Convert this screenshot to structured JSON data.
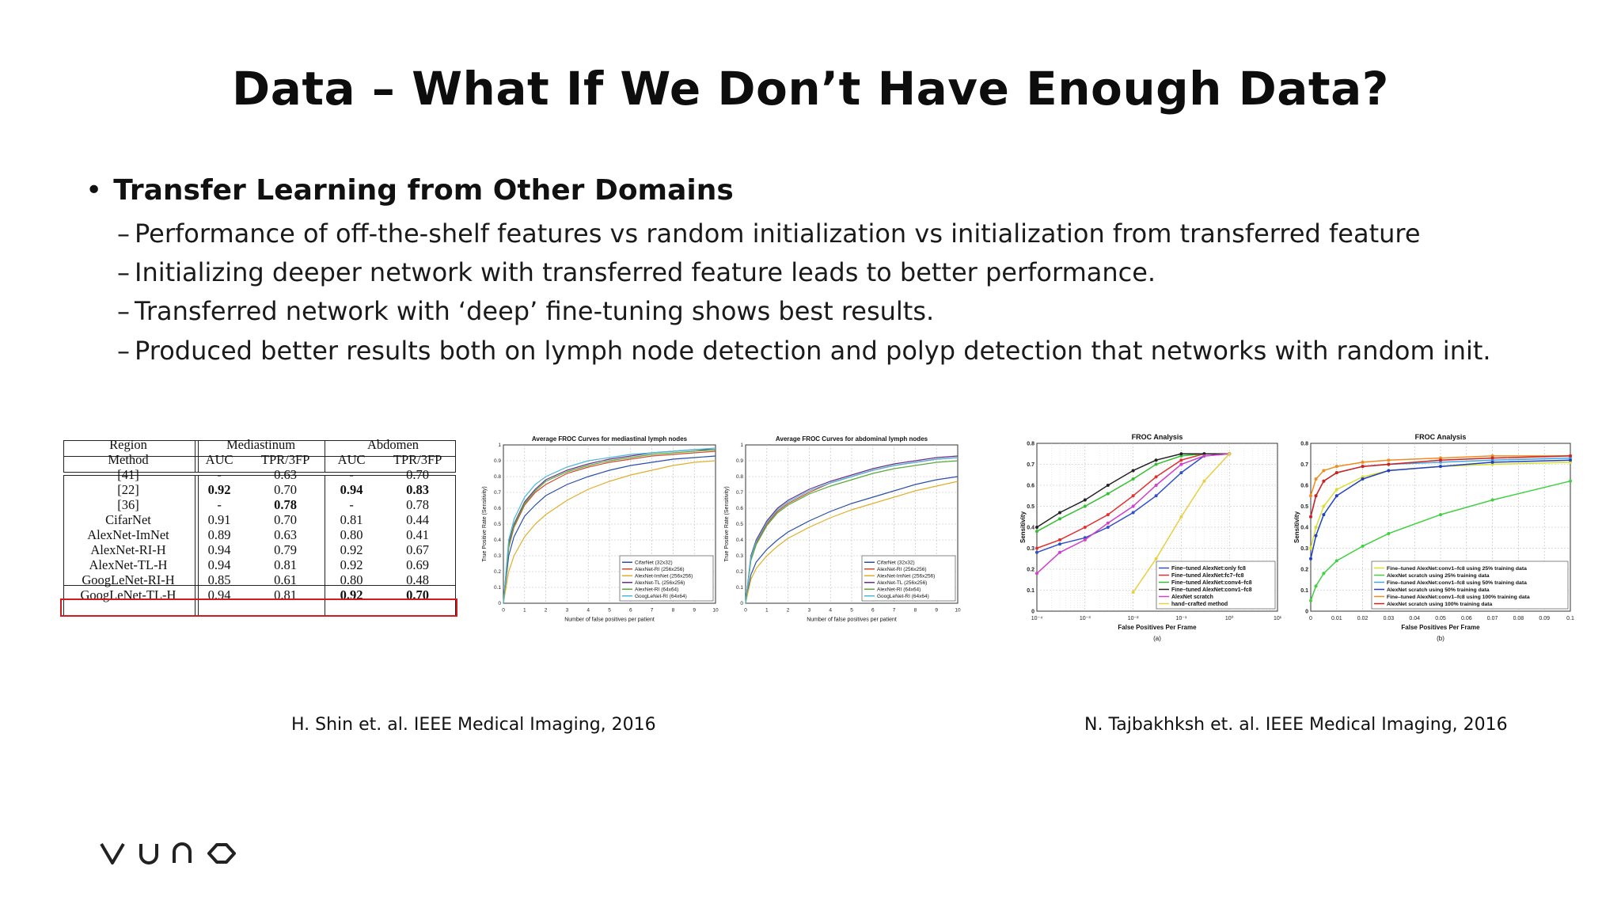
{
  "slide": {
    "title": "Data – What If We Don’t Have Enough Data?",
    "bullet": "Transfer Learning from Other Domains",
    "sub_bullets": [
      "Performance of off-the-shelf features vs random initialization vs initialization from transferred feature",
      "Initializing deeper network with transferred feature leads to better performance.",
      "Transferred network with ‘deep’ fine-tuning shows best results.",
      "Produced better results both on lymph node detection and polyp detection that networks with random init."
    ],
    "caption_left": "H. Shin et. al. IEEE Medical Imaging, 2016",
    "caption_right": "N. Tajbakhksh et. al. IEEE Medical Imaging, 2016",
    "logo_text": "VUNO"
  },
  "table": {
    "group_headers": [
      "Region",
      "Mediastinum",
      "Abdomen"
    ],
    "col_headers": [
      "Method",
      "AUC",
      "TPR/3FP",
      "AUC",
      "TPR/3FP"
    ],
    "rows": [
      [
        "[41]",
        "-",
        "0.63",
        "-",
        "0.70"
      ],
      [
        "[22]",
        "0.92",
        "0.70",
        "0.94",
        "0.83"
      ],
      [
        "[36]",
        "-",
        "0.78",
        "-",
        "0.78"
      ],
      [
        "CifarNet",
        "0.91",
        "0.70",
        "0.81",
        "0.44"
      ],
      [
        "AlexNet-ImNet",
        "0.89",
        "0.63",
        "0.80",
        "0.41"
      ],
      [
        "AlexNet-RI-H",
        "0.94",
        "0.79",
        "0.92",
        "0.67"
      ],
      [
        "AlexNet-TL-H",
        "0.94",
        "0.81",
        "0.92",
        "0.69"
      ],
      [
        "GoogLeNet-RI-H",
        "0.85",
        "0.61",
        "0.80",
        "0.48"
      ],
      [
        "GoogLeNet-TL-H",
        "0.94",
        "0.81",
        "0.92",
        "0.70"
      ]
    ],
    "bold_cells": [
      [
        1,
        1
      ],
      [
        1,
        3
      ],
      [
        1,
        4
      ],
      [
        2,
        2
      ],
      [
        8,
        3
      ],
      [
        8,
        4
      ]
    ],
    "highlighted_row": 8,
    "highlight_color": "#d01c1c"
  },
  "chart_data": [
    {
      "type": "line",
      "title": "Average FROC Curves for mediastinal lymph nodes",
      "xlabel": "Number of false positives per patient",
      "ylabel": "True Positive Rate (Sensitivity)",
      "xlim": [
        0,
        10
      ],
      "ylim": [
        0,
        1
      ],
      "xticks": [
        "0",
        "1",
        "2",
        "3",
        "4",
        "5",
        "6",
        "7",
        "8",
        "9",
        "10"
      ],
      "yticks": [
        "0",
        "0.1",
        "0.2",
        "0.3",
        "0.4",
        "0.5",
        "0.6",
        "0.7",
        "0.8",
        "0.9",
        "1"
      ],
      "grid": true,
      "legend": "bottom-right",
      "x": [
        0,
        0.25,
        0.5,
        1,
        1.5,
        2,
        3,
        4,
        5,
        6,
        7,
        8,
        9,
        10
      ],
      "series": [
        {
          "name": "CifarNet (32x32)",
          "color": "#2b4fa8",
          "values": [
            0,
            0.3,
            0.42,
            0.55,
            0.62,
            0.68,
            0.75,
            0.8,
            0.84,
            0.87,
            0.89,
            0.91,
            0.92,
            0.93
          ]
        },
        {
          "name": "AlexNet-RI (256x256)",
          "color": "#d24a2a",
          "values": [
            0,
            0.35,
            0.48,
            0.62,
            0.7,
            0.75,
            0.82,
            0.86,
            0.89,
            0.91,
            0.93,
            0.94,
            0.95,
            0.96
          ]
        },
        {
          "name": "AlexNet-ImNet (256x256)",
          "color": "#e0b02a",
          "values": [
            0,
            0.2,
            0.3,
            0.42,
            0.5,
            0.56,
            0.65,
            0.72,
            0.77,
            0.81,
            0.84,
            0.87,
            0.89,
            0.9
          ]
        },
        {
          "name": "AlexNet-TL (256x256)",
          "color": "#6a2f8a",
          "values": [
            0,
            0.38,
            0.5,
            0.64,
            0.72,
            0.78,
            0.84,
            0.88,
            0.91,
            0.93,
            0.95,
            0.96,
            0.97,
            0.97
          ]
        },
        {
          "name": "AlexNet-RI (64x64)",
          "color": "#5aaa3a",
          "values": [
            0,
            0.36,
            0.49,
            0.63,
            0.71,
            0.77,
            0.83,
            0.87,
            0.9,
            0.92,
            0.94,
            0.95,
            0.96,
            0.97
          ]
        },
        {
          "name": "GoogLeNet-RI (64x64)",
          "color": "#4ab8d8",
          "values": [
            0,
            0.4,
            0.53,
            0.67,
            0.75,
            0.8,
            0.86,
            0.9,
            0.92,
            0.94,
            0.95,
            0.96,
            0.97,
            0.98
          ]
        }
      ]
    },
    {
      "type": "line",
      "title": "Average FROC Curves for abdominal lymph nodes",
      "xlabel": "Number of false positives per patient",
      "ylabel": "True Positive Rate (Sensitivity)",
      "xlim": [
        0,
        10
      ],
      "ylim": [
        0,
        1
      ],
      "xticks": [
        "0",
        "1",
        "2",
        "3",
        "4",
        "5",
        "6",
        "7",
        "8",
        "9",
        "10"
      ],
      "yticks": [
        "0",
        "0.1",
        "0.2",
        "0.3",
        "0.4",
        "0.5",
        "0.6",
        "0.7",
        "0.8",
        "0.9",
        "1"
      ],
      "grid": true,
      "legend": "bottom-right",
      "x": [
        0,
        0.25,
        0.5,
        1,
        1.5,
        2,
        3,
        4,
        5,
        6,
        7,
        8,
        9,
        10
      ],
      "series": [
        {
          "name": "CifarNet (32x32)",
          "color": "#2b4fa8",
          "values": [
            0,
            0.18,
            0.26,
            0.34,
            0.4,
            0.45,
            0.52,
            0.58,
            0.63,
            0.67,
            0.71,
            0.75,
            0.78,
            0.8
          ]
        },
        {
          "name": "AlexNet-RI (256x256)",
          "color": "#d24a2a",
          "values": [
            0,
            0.28,
            0.38,
            0.5,
            0.58,
            0.63,
            0.7,
            0.76,
            0.8,
            0.84,
            0.87,
            0.89,
            0.91,
            0.92
          ]
        },
        {
          "name": "AlexNet-ImNet (256x256)",
          "color": "#e0b02a",
          "values": [
            0,
            0.15,
            0.22,
            0.3,
            0.36,
            0.41,
            0.48,
            0.54,
            0.59,
            0.63,
            0.67,
            0.71,
            0.74,
            0.77
          ]
        },
        {
          "name": "AlexNet-TL (256x256)",
          "color": "#6a2f8a",
          "values": [
            0,
            0.3,
            0.4,
            0.52,
            0.6,
            0.65,
            0.72,
            0.77,
            0.81,
            0.85,
            0.88,
            0.9,
            0.92,
            0.93
          ]
        },
        {
          "name": "AlexNet-RI (64x64)",
          "color": "#5aaa3a",
          "values": [
            0,
            0.27,
            0.37,
            0.49,
            0.57,
            0.62,
            0.69,
            0.74,
            0.78,
            0.82,
            0.85,
            0.87,
            0.89,
            0.9
          ]
        },
        {
          "name": "GoogLeNet-RI (64x64)",
          "color": "#4ab8d8",
          "values": [
            0,
            0.29,
            0.39,
            0.51,
            0.59,
            0.64,
            0.71,
            0.76,
            0.8,
            0.84,
            0.87,
            0.89,
            0.91,
            0.92
          ]
        }
      ]
    },
    {
      "type": "line",
      "title": "FROC Analysis",
      "xlabel": "False Positives Per Frame",
      "ylabel": "Sensitivity",
      "sublabel": "(a)",
      "xscale": "log",
      "xlim": [
        0.0001,
        10
      ],
      "ylim": [
        0,
        0.8
      ],
      "xticks": [
        "10⁻⁴",
        "10⁻³",
        "10⁻²",
        "10⁻¹",
        "10⁰",
        "10¹"
      ],
      "yticks": [
        "0",
        "0.1",
        "0.2",
        "0.3",
        "0.4",
        "0.5",
        "0.6",
        "0.7",
        "0.8"
      ],
      "grid": true,
      "legend": "bottom-right",
      "x": [
        0.0001,
        0.0003,
        0.001,
        0.003,
        0.01,
        0.03,
        0.1,
        0.3,
        1
      ],
      "series": [
        {
          "name": "Fine–tuned AlexNet:only fc8",
          "color": "#3050c8",
          "values": [
            0.28,
            0.32,
            0.35,
            0.4,
            0.47,
            0.55,
            0.66,
            0.74,
            0.75
          ]
        },
        {
          "name": "Fine–tuned AlexNet:fc7–fc8",
          "color": "#e03030",
          "values": [
            0.3,
            0.34,
            0.4,
            0.46,
            0.55,
            0.64,
            0.72,
            0.75,
            0.75
          ]
        },
        {
          "name": "Fine–tuned AlexNet:conv4–fc8",
          "color": "#30c030",
          "values": [
            0.38,
            0.44,
            0.5,
            0.56,
            0.63,
            0.7,
            0.74,
            0.75,
            0.75
          ]
        },
        {
          "name": "Fine–tuned AlexNet:conv1–fc8",
          "color": "#222222",
          "values": [
            0.4,
            0.47,
            0.53,
            0.6,
            0.67,
            0.72,
            0.75,
            0.75,
            0.75
          ]
        },
        {
          "name": "AlexNet scratch",
          "color": "#d040c8",
          "values": [
            0.18,
            0.28,
            0.34,
            0.42,
            0.5,
            0.6,
            0.7,
            0.74,
            0.75
          ]
        },
        {
          "name": "hand–crafted method",
          "color": "#e8d040",
          "values": [
            null,
            null,
            null,
            null,
            0.09,
            0.25,
            0.45,
            0.62,
            0.75
          ]
        }
      ]
    },
    {
      "type": "line",
      "title": "FROC Analysis",
      "xlabel": "False Positives Per Frame",
      "ylabel": "Sensitivity",
      "sublabel": "(b)",
      "xlim": [
        0,
        0.1
      ],
      "ylim": [
        0,
        0.8
      ],
      "xticks": [
        "0",
        "0.01",
        "0.02",
        "0.03",
        "0.04",
        "0.05",
        "0.06",
        "0.07",
        "0.08",
        "0.09",
        "0.1"
      ],
      "yticks": [
        "0",
        "0.1",
        "0.2",
        "0.3",
        "0.4",
        "0.5",
        "0.6",
        "0.7",
        "0.8"
      ],
      "grid": true,
      "legend": "bottom-right",
      "x": [
        0,
        0.002,
        0.005,
        0.01,
        0.02,
        0.03,
        0.05,
        0.07,
        0.1
      ],
      "series": [
        {
          "name": "Fine–tuned AlexNet:conv1–fc8 using 25% training data",
          "color": "#d8e030",
          "values": [
            0.3,
            0.4,
            0.5,
            0.58,
            0.64,
            0.67,
            0.69,
            0.7,
            0.71
          ]
        },
        {
          "name": "AlexNet scratch using 25% training data",
          "color": "#40d040",
          "values": [
            0.05,
            0.12,
            0.18,
            0.24,
            0.31,
            0.37,
            0.46,
            0.53,
            0.62
          ]
        },
        {
          "name": "Fine–tuned AlexNet:conv1–fc8 using 50% training data",
          "color": "#40a8e8",
          "values": [
            0.45,
            0.55,
            0.62,
            0.66,
            0.69,
            0.7,
            0.71,
            0.72,
            0.73
          ]
        },
        {
          "name": "AlexNet scratch using 50% training data",
          "color": "#2040c0",
          "values": [
            0.25,
            0.36,
            0.46,
            0.55,
            0.63,
            0.67,
            0.69,
            0.71,
            0.72
          ]
        },
        {
          "name": "Fine–tuned AlexNet:conv1–fc8 using 100% training data",
          "color": "#f08c20",
          "values": [
            0.55,
            0.63,
            0.67,
            0.69,
            0.71,
            0.72,
            0.73,
            0.74,
            0.74
          ]
        },
        {
          "name": "AlexNet scratch using 100% training data",
          "color": "#d02020",
          "values": [
            0.45,
            0.55,
            0.62,
            0.66,
            0.69,
            0.7,
            0.72,
            0.73,
            0.74
          ]
        }
      ]
    }
  ]
}
